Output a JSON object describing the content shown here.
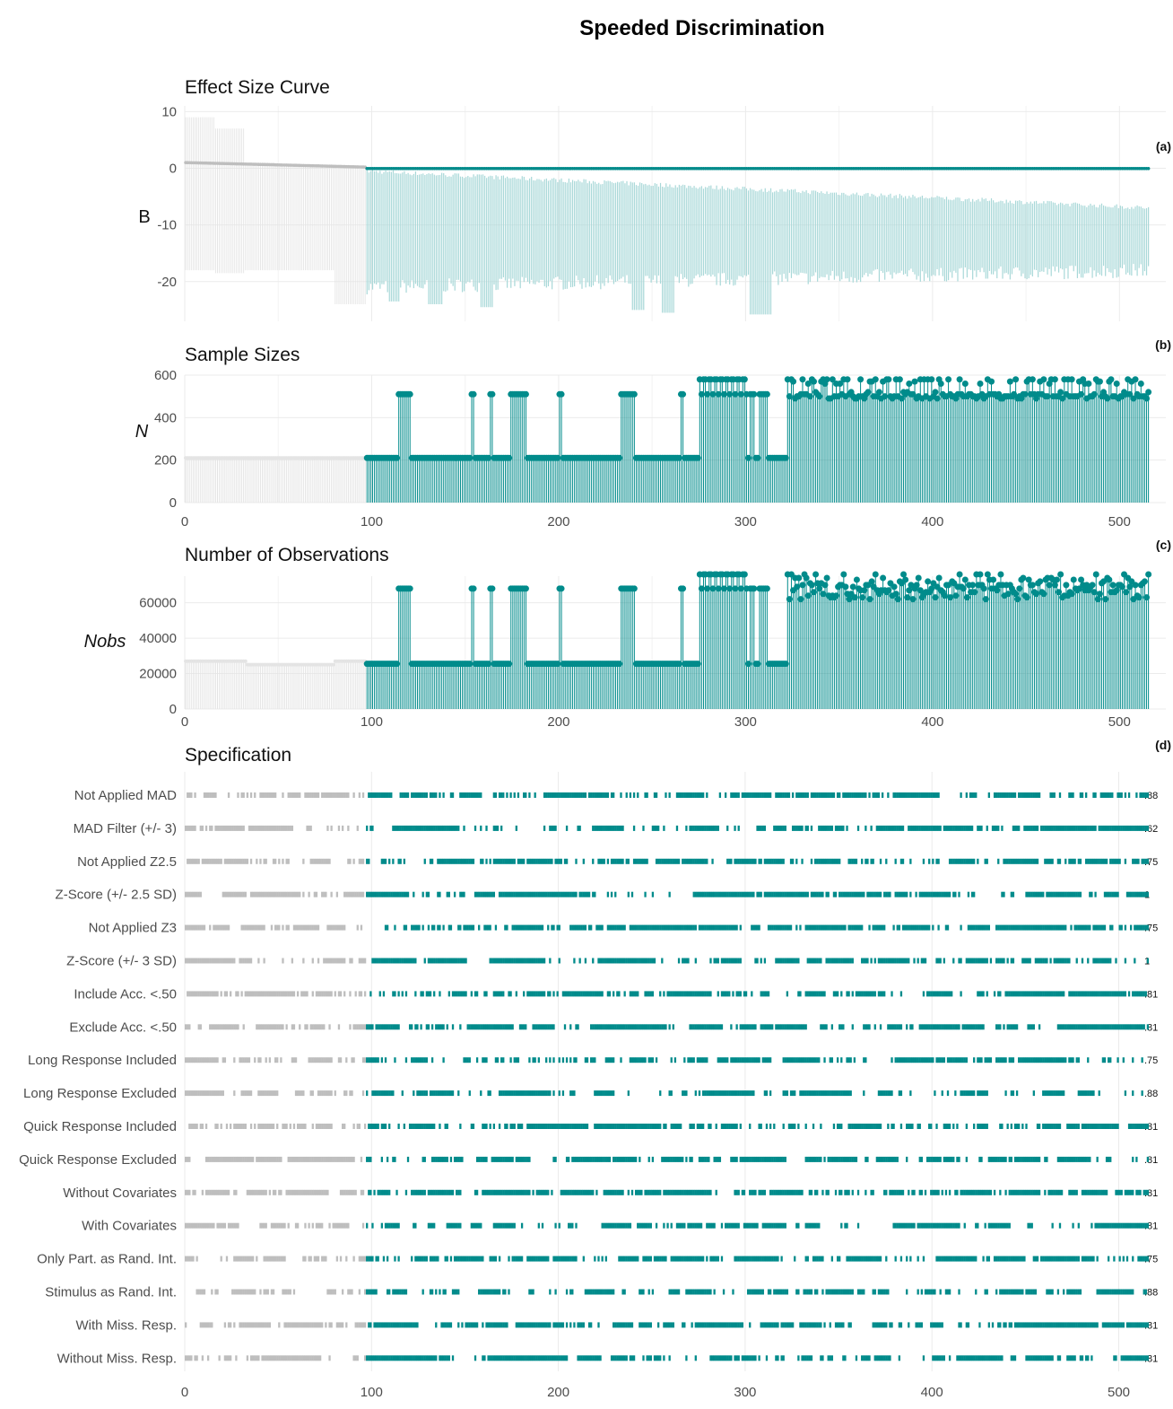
{
  "title": "Speeded Discrimination",
  "colors": {
    "accent": "#008b8b",
    "accent_light": "#a8d8d8",
    "grey": "#bebebe",
    "grey_light": "#e4e4e4"
  },
  "chart_data": [
    {
      "id": "a",
      "type": "line",
      "title": "Effect Size Curve",
      "panel_label": "(a)",
      "ylabel": "B",
      "xlim": [
        0,
        520
      ],
      "ylim": [
        -27,
        11
      ],
      "y_ticks": [
        10,
        0,
        -10,
        -20
      ],
      "grey_points": 97,
      "estimate_start": 1.0,
      "estimate_end": -0.05,
      "grey_ci": [
        {
          "from": 0,
          "to": 16,
          "lower": -18,
          "upper": 9
        },
        {
          "from": 16,
          "to": 32,
          "lower": -18.5,
          "upper": 7
        },
        {
          "from": 32,
          "to": 48,
          "lower": -18,
          "upper": 1
        },
        {
          "from": 48,
          "to": 80,
          "lower": -18,
          "upper": 0.5
        },
        {
          "from": 80,
          "to": 97,
          "lower": -24,
          "upper": 0.3
        }
      ],
      "ci_lower_start": -21,
      "ci_lower_end": -18,
      "ci_upper_start": -0.5,
      "ci_upper_end": -7,
      "deep_dips": [
        {
          "at": 109,
          "to": 115,
          "lower": -23.5
        },
        {
          "at": 130,
          "to": 138,
          "lower": -24
        },
        {
          "at": 158,
          "to": 165,
          "lower": -24.5
        },
        {
          "at": 239,
          "to": 246,
          "lower": -25
        },
        {
          "at": 255,
          "to": 262,
          "lower": -25.5
        },
        {
          "at": 302,
          "to": 314,
          "lower": -25.8
        }
      ]
    },
    {
      "id": "b",
      "type": "scatter",
      "title": "Sample Sizes",
      "panel_label": "(b)",
      "ylabel": "N",
      "xlim": [
        0,
        520
      ],
      "ylim": [
        0,
        600
      ],
      "y_ticks": [
        600,
        400,
        200,
        0
      ],
      "x_ticks": [
        0,
        100,
        200,
        300,
        400,
        500
      ],
      "grey_value": 210,
      "base_value": 210,
      "high_value": 510,
      "top_value": 580,
      "mixed_values": [
        500,
        510,
        490,
        580,
        570,
        500,
        520,
        580,
        490,
        560,
        500,
        510,
        570,
        490,
        500
      ]
    },
    {
      "id": "c",
      "type": "scatter",
      "title": "Number of Observations",
      "panel_label": "(c)",
      "ylabel": "Nobs",
      "xlim": [
        0,
        520
      ],
      "ylim": [
        0,
        75000
      ],
      "y_ticks": [
        60000,
        40000,
        20000,
        0
      ],
      "x_ticks": [
        0,
        100,
        200,
        300,
        400,
        500
      ],
      "grey_values": [
        27000,
        25000,
        27000
      ],
      "base_value": 25500,
      "high_value": 68000,
      "top_value": 76000,
      "mixed_values": [
        66000,
        70000,
        63000,
        74000,
        68000,
        65000,
        72000,
        76000,
        64000,
        70000,
        67000,
        73000,
        62000,
        69000,
        71000
      ]
    },
    {
      "id": "d",
      "type": "table",
      "title": "Specification",
      "panel_label": "(d)",
      "x_ticks": [
        0,
        100,
        200,
        300,
        400,
        500
      ],
      "rows": [
        {
          "label": "Not Applied MAD",
          "prop": ".88"
        },
        {
          "label": "MAD Filter (+/- 3)",
          "prop": ".62"
        },
        {
          "label": "Not Applied Z2.5",
          "prop": ".75"
        },
        {
          "label": "Z-Score (+/- 2.5 SD)",
          "prop": "1"
        },
        {
          "label": "Not Applied Z3",
          "prop": ".75"
        },
        {
          "label": "Z-Score (+/- 3 SD)",
          "prop": "1"
        },
        {
          "label": "Include Acc. <.50",
          "prop": ".81"
        },
        {
          "label": "Exclude Acc. <.50",
          "prop": ".81"
        },
        {
          "label": "Long Response Included",
          "prop": ".75"
        },
        {
          "label": "Long Response Excluded",
          "prop": ".88"
        },
        {
          "label": "Quick Response Included",
          "prop": ".81"
        },
        {
          "label": "Quick Response Excluded",
          "prop": ".81"
        },
        {
          "label": "Without Covariates",
          "prop": ".81"
        },
        {
          "label": "With Covariates",
          "prop": ".81"
        },
        {
          "label": "Only Part. as Rand. Int.",
          "prop": ".75"
        },
        {
          "label": "Stimulus as Rand. Int.",
          "prop": ".88"
        },
        {
          "label": "With Miss. Resp.",
          "prop": ".81"
        },
        {
          "label": "Without Miss. Resp.",
          "prop": ".81"
        }
      ],
      "n_specs": 516,
      "n_grey": 97
    }
  ]
}
